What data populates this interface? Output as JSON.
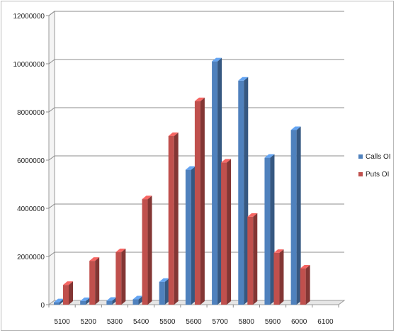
{
  "chart_data": {
    "type": "bar",
    "title": "",
    "xlabel": "",
    "ylabel": "",
    "categories": [
      "5100",
      "5200",
      "5300",
      "5400",
      "5500",
      "5600",
      "5700",
      "5800",
      "5900",
      "6000",
      "6100"
    ],
    "series": [
      {
        "name": "Calls OI",
        "color": "#4f81bd",
        "values": [
          100000,
          150000,
          160000,
          220000,
          950000,
          5600000,
          10100000,
          9300000,
          6100000,
          7250000,
          0
        ]
      },
      {
        "name": "Puts OI",
        "color": "#c0504d",
        "values": [
          820000,
          1820000,
          2180000,
          4380000,
          7000000,
          8450000,
          5900000,
          3650000,
          2150000,
          1500000,
          0
        ]
      }
    ],
    "y_ticks": [
      "0",
      "2000000",
      "4000000",
      "6000000",
      "8000000",
      "10000000",
      "12000000"
    ],
    "ylim": [
      0,
      12000000
    ],
    "grid": true,
    "legend_position": "right",
    "three_d": true
  }
}
